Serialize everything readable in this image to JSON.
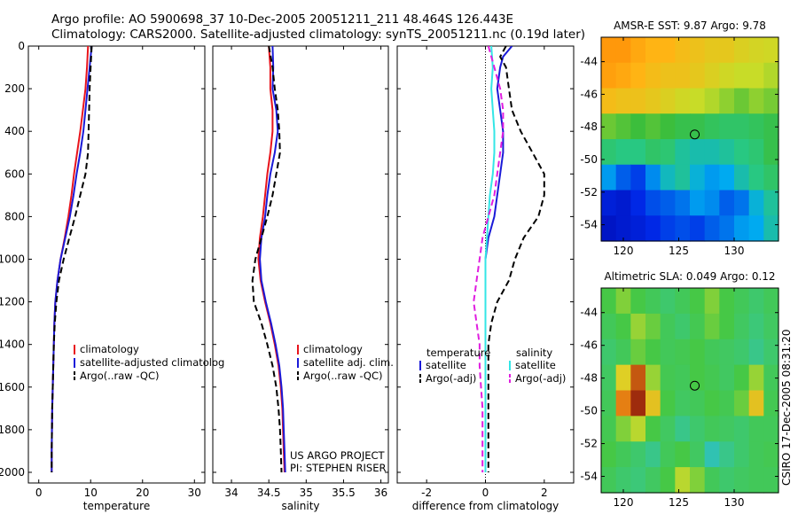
{
  "title": {
    "line1": "Argo profile: AO 5900698_37 10-Dec-2005 20051211_211 48.464S 126.443E",
    "line2": "Climatology: CARS2000. Satellite-adjusted climatology: synTS_20051211.nc (0.19d later)"
  },
  "colors": {
    "climatology": "#e8141c",
    "satellite": "#1a1ad8",
    "argo": "#000000",
    "sat_salinity": "#33e6e6",
    "argo_salinity": "#e01ee0"
  },
  "y_ticks": [
    "0",
    "200",
    "400",
    "600",
    "800",
    "1000",
    "1200",
    "1400",
    "1600",
    "1800",
    "2000"
  ],
  "chart_data": [
    {
      "type": "line",
      "panel": "temperature",
      "xlabel": "temperature",
      "ylabel": "",
      "xlim": [
        -2,
        32
      ],
      "ylim": [
        2050,
        0
      ],
      "x_ticks": [
        "0",
        "10",
        "20",
        "30"
      ],
      "legend": {
        "position": "lower-middle",
        "entries": [
          "climatology",
          "satellite-adjusted climatolog",
          "Argo(..raw -QC)"
        ]
      },
      "series": [
        {
          "key": "climatology",
          "style": "solid",
          "depth": [
            0,
            50,
            100,
            200,
            300,
            400,
            500,
            600,
            700,
            800,
            900,
            1000,
            1100,
            1200,
            1300,
            1400,
            1500,
            1600,
            1700,
            1800,
            1900,
            2000
          ],
          "values": [
            9.5,
            9.4,
            9.3,
            9.0,
            8.5,
            8.0,
            7.4,
            6.8,
            6.3,
            5.7,
            5.0,
            4.2,
            3.6,
            3.2,
            3.0,
            2.9,
            2.8,
            2.7,
            2.6,
            2.55,
            2.5,
            2.5
          ]
        },
        {
          "key": "satellite",
          "style": "solid",
          "depth": [
            0,
            50,
            100,
            200,
            300,
            400,
            500,
            600,
            700,
            800,
            900,
            1000,
            1100,
            1200,
            1300,
            1400,
            1500,
            1600,
            1700,
            1800,
            1900,
            2000
          ],
          "values": [
            10.2,
            10.0,
            9.8,
            9.4,
            9.0,
            8.6,
            8.0,
            7.3,
            6.7,
            6.0,
            5.1,
            4.2,
            3.6,
            3.2,
            3.0,
            2.9,
            2.8,
            2.7,
            2.6,
            2.55,
            2.5,
            2.5
          ]
        },
        {
          "key": "argo",
          "style": "dashed",
          "depth": [
            0,
            50,
            100,
            200,
            300,
            400,
            500,
            600,
            700,
            800,
            900,
            1000,
            1100,
            1200,
            1300,
            1400,
            1500,
            1600,
            1700,
            1800,
            1900,
            2000
          ],
          "values": [
            10.2,
            10.1,
            10.0,
            9.8,
            9.7,
            9.6,
            9.5,
            9.0,
            8.0,
            7.0,
            5.9,
            4.8,
            3.9,
            3.4,
            3.1,
            2.9,
            2.8,
            2.7,
            2.6,
            2.55,
            2.5,
            2.5
          ]
        }
      ]
    },
    {
      "type": "line",
      "panel": "salinity",
      "xlabel": "salinity",
      "ylabel": "",
      "xlim": [
        33.75,
        36.1
      ],
      "ylim": [
        2050,
        0
      ],
      "x_ticks": [
        "34",
        "34.5",
        "35",
        "35.5",
        "36"
      ],
      "legend": {
        "position": "lower-middle",
        "entries": [
          "climatology",
          "satellite adj. clim.",
          "Argo(..raw -QC)"
        ]
      },
      "series": [
        {
          "key": "climatology",
          "style": "solid",
          "depth": [
            0,
            100,
            200,
            300,
            400,
            500,
            600,
            700,
            800,
            900,
            1000,
            1100,
            1200,
            1300,
            1400,
            1500,
            1600,
            1700,
            1800,
            1900,
            2000
          ],
          "values": [
            34.5,
            34.52,
            34.52,
            34.55,
            34.55,
            34.52,
            34.48,
            34.45,
            34.42,
            34.38,
            34.36,
            34.39,
            34.45,
            34.52,
            34.58,
            34.63,
            34.66,
            34.68,
            34.69,
            34.7,
            34.71
          ]
        },
        {
          "key": "satellite",
          "style": "solid",
          "depth": [
            0,
            100,
            200,
            300,
            400,
            500,
            600,
            700,
            800,
            900,
            1000,
            1100,
            1200,
            1300,
            1400,
            1500,
            1600,
            1700,
            1800,
            1900,
            2000
          ],
          "values": [
            34.55,
            34.56,
            34.55,
            34.6,
            34.62,
            34.58,
            34.52,
            34.48,
            34.45,
            34.4,
            34.38,
            34.4,
            34.46,
            34.53,
            34.59,
            34.64,
            34.67,
            34.69,
            34.7,
            34.71,
            34.72
          ]
        },
        {
          "key": "argo",
          "style": "dashed",
          "depth": [
            0,
            100,
            200,
            300,
            400,
            500,
            600,
            700,
            800,
            900,
            1000,
            1100,
            1200,
            1300,
            1400,
            1500,
            1600,
            1700,
            1800,
            1900,
            2000
          ],
          "values": [
            34.5,
            34.55,
            34.58,
            34.62,
            34.64,
            34.65,
            34.6,
            34.55,
            34.48,
            34.4,
            34.32,
            34.28,
            34.3,
            34.4,
            34.48,
            34.55,
            34.6,
            34.63,
            34.65,
            34.66,
            34.67
          ]
        }
      ],
      "annotation": [
        "US ARGO PROJECT",
        "PI: STEPHEN RISER"
      ]
    },
    {
      "type": "line",
      "panel": "difference",
      "xlabel": "difference from climatology",
      "ylabel": "",
      "xlim": [
        -3,
        3
      ],
      "ylim": [
        2050,
        0
      ],
      "x_ticks": [
        "-2",
        "0",
        "2"
      ],
      "legend": {
        "position": "lower",
        "temperature_header": "temperature",
        "salinity_header": "salinity",
        "entries": [
          "satellite",
          "Argo(-adj)",
          "satellite",
          "Argo(-adj)"
        ]
      },
      "series": [
        {
          "key": "temp_satellite",
          "color_key": "satellite",
          "style": "solid",
          "depth": [
            0,
            50,
            100,
            200,
            300,
            400,
            500,
            600,
            700,
            800,
            900,
            1000,
            1100,
            1200,
            1300,
            1400,
            1500,
            1600,
            1700,
            1800,
            1900,
            2000
          ],
          "values": [
            0.9,
            0.6,
            0.5,
            0.4,
            0.5,
            0.6,
            0.6,
            0.5,
            0.4,
            0.3,
            0.1,
            0.0,
            0.0,
            0.0,
            0.0,
            0.0,
            0.0,
            0.0,
            0.0,
            0.0,
            0.0,
            0.0
          ]
        },
        {
          "key": "temp_argo",
          "color_key": "argo",
          "style": "dashed",
          "depth": [
            0,
            50,
            100,
            200,
            300,
            400,
            500,
            600,
            700,
            800,
            900,
            1000,
            1100,
            1200,
            1300,
            1400,
            1500,
            1600,
            1700,
            1800,
            1900,
            2000
          ],
          "values": [
            0.7,
            0.5,
            0.7,
            0.8,
            0.9,
            1.2,
            1.6,
            2.0,
            2.0,
            1.8,
            1.3,
            1.0,
            0.8,
            0.4,
            0.2,
            0.1,
            0.1,
            0.1,
            0.1,
            0.1,
            0.1,
            0.1
          ]
        },
        {
          "key": "sal_satellite",
          "color_key": "sat_salinity",
          "style": "solid",
          "depth": [
            0,
            100,
            200,
            300,
            400,
            500,
            600,
            700,
            800,
            900,
            1000,
            1100,
            1200,
            1300,
            1400,
            1500,
            1600,
            1700,
            1800,
            1900,
            2000
          ],
          "values": [
            0.2,
            0.25,
            0.2,
            0.25,
            0.3,
            0.3,
            0.25,
            0.15,
            0.1,
            0.05,
            0.0,
            0.0,
            0.0,
            0.0,
            0.0,
            0.0,
            0.0,
            0.0,
            0.0,
            0.0,
            0.0
          ]
        },
        {
          "key": "sal_argo",
          "color_key": "argo_salinity",
          "style": "dashed",
          "depth": [
            0,
            100,
            200,
            300,
            400,
            500,
            600,
            700,
            800,
            900,
            1000,
            1100,
            1200,
            1300,
            1400,
            1500,
            1600,
            1700,
            1800,
            1900,
            2000
          ],
          "values": [
            0.1,
            0.3,
            0.5,
            0.6,
            0.6,
            0.5,
            0.4,
            0.3,
            0.1,
            -0.1,
            -0.2,
            -0.3,
            -0.4,
            -0.3,
            -0.2,
            -0.2,
            -0.15,
            -0.1,
            -0.1,
            -0.1,
            -0.1
          ]
        }
      ]
    },
    {
      "type": "heatmap",
      "panel": "sst_map",
      "title": "AMSR-E SST: 9.87 Argo: 9.78",
      "xlabel": "",
      "ylabel": "",
      "xlim": [
        118,
        134
      ],
      "ylim": [
        -55,
        -42.5
      ],
      "x_ticks": [
        "120",
        "125",
        "130"
      ],
      "y_ticks": [
        "-44",
        "-46",
        "-48",
        "-50",
        "-52",
        "-54"
      ],
      "argo_position": [
        126.443,
        -48.464
      ],
      "grid_rows_top_to_bottom": [
        [
          0.92,
          0.92,
          0.88,
          0.85,
          0.85,
          0.82,
          0.8,
          0.78,
          0.78,
          0.75,
          0.73,
          0.72
        ],
        [
          0.9,
          0.88,
          0.85,
          0.82,
          0.8,
          0.8,
          0.78,
          0.75,
          0.72,
          0.7,
          0.7,
          0.68
        ],
        [
          0.82,
          0.8,
          0.8,
          0.78,
          0.75,
          0.72,
          0.7,
          0.68,
          0.65,
          0.62,
          0.65,
          0.63
        ],
        [
          0.62,
          0.6,
          0.58,
          0.6,
          0.58,
          0.55,
          0.55,
          0.52,
          0.5,
          0.5,
          0.52,
          0.55
        ],
        [
          0.48,
          0.45,
          0.45,
          0.5,
          0.48,
          0.42,
          0.4,
          0.4,
          0.42,
          0.45,
          0.48,
          0.55
        ],
        [
          0.3,
          0.22,
          0.18,
          0.28,
          0.38,
          0.42,
          0.35,
          0.3,
          0.32,
          0.4,
          0.45,
          0.5
        ],
        [
          0.12,
          0.1,
          0.15,
          0.2,
          0.22,
          0.25,
          0.3,
          0.28,
          0.22,
          0.25,
          0.35,
          0.42
        ],
        [
          0.08,
          0.1,
          0.12,
          0.15,
          0.18,
          0.2,
          0.18,
          0.22,
          0.25,
          0.3,
          0.32,
          0.4
        ]
      ]
    },
    {
      "type": "heatmap",
      "panel": "sla_map",
      "title": "Altimetric SLA: 0.049 Argo: 0.12",
      "xlabel": "",
      "ylabel": "",
      "xlim": [
        118,
        134
      ],
      "ylim": [
        -55,
        -42.5
      ],
      "x_ticks": [
        "120",
        "125",
        "130"
      ],
      "y_ticks": [
        "-44",
        "-46",
        "-48",
        "-50",
        "-52",
        "-54"
      ],
      "argo_position": [
        126.443,
        -48.464
      ],
      "grid_rows_top_to_bottom": [
        [
          0.55,
          0.6,
          0.55,
          0.5,
          0.45,
          0.5,
          0.55,
          0.6,
          0.55,
          0.5,
          0.45,
          0.5
        ],
        [
          0.5,
          0.55,
          0.62,
          0.58,
          0.5,
          0.45,
          0.52,
          0.58,
          0.55,
          0.48,
          0.42,
          0.48
        ],
        [
          0.45,
          0.5,
          0.58,
          0.55,
          0.5,
          0.52,
          0.55,
          0.5,
          0.48,
          0.45,
          0.4,
          0.45
        ],
        [
          0.48,
          0.7,
          0.88,
          0.62,
          0.52,
          0.5,
          0.55,
          0.52,
          0.48,
          0.55,
          0.62,
          0.5
        ],
        [
          0.5,
          0.82,
          0.95,
          0.72,
          0.55,
          0.48,
          0.5,
          0.55,
          0.52,
          0.58,
          0.72,
          0.52
        ],
        [
          0.52,
          0.6,
          0.65,
          0.55,
          0.48,
          0.4,
          0.45,
          0.5,
          0.48,
          0.45,
          0.5,
          0.5
        ],
        [
          0.55,
          0.5,
          0.45,
          0.4,
          0.5,
          0.55,
          0.48,
          0.35,
          0.4,
          0.45,
          0.5,
          0.52
        ],
        [
          0.5,
          0.45,
          0.42,
          0.48,
          0.55,
          0.65,
          0.6,
          0.5,
          0.45,
          0.48,
          0.5,
          0.5
        ]
      ]
    }
  ],
  "side_text": "CSIRO 17-Dec-2005 08:31:20"
}
